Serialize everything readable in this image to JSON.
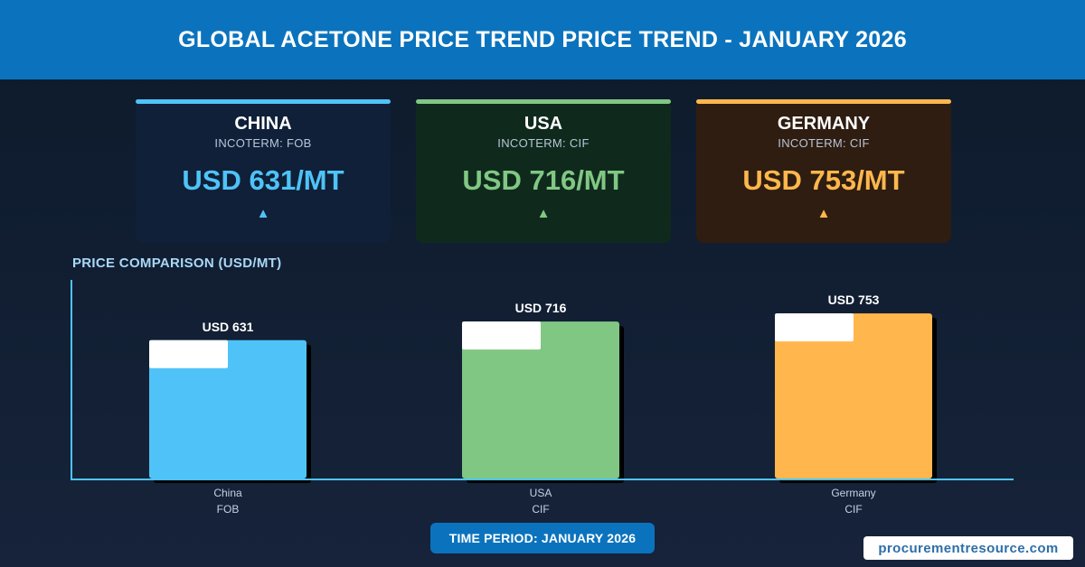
{
  "header": {
    "title": "GLOBAL ACETONE PRICE TREND PRICE TREND - JANUARY 2026"
  },
  "cards": [
    {
      "country": "CHINA",
      "incoterm": "INCOTERM: FOB",
      "price": "USD 631/MT",
      "trend": "▲",
      "color": "#4fc3f7"
    },
    {
      "country": "USA",
      "incoterm": "INCOTERM: CIF",
      "price": "USD 716/MT",
      "trend": "▲",
      "color": "#81c784"
    },
    {
      "country": "GERMANY",
      "incoterm": "INCOTERM: CIF",
      "price": "USD 753/MT",
      "trend": "▲",
      "color": "#ffb74d"
    }
  ],
  "chart_title": "PRICE COMPARISON (USD/MT)",
  "chart_data": {
    "type": "bar",
    "title": "PRICE COMPARISON (USD/MT)",
    "categories": [
      "China",
      "USA",
      "Germany"
    ],
    "sublabels": [
      "FOB",
      "CIF",
      "CIF"
    ],
    "values": [
      631,
      716,
      753
    ],
    "value_labels": [
      "USD 631",
      "USD 716",
      "USD 753"
    ],
    "colors": [
      "#4fc3f7",
      "#81c784",
      "#ffb74d"
    ],
    "xlabel": "",
    "ylabel": "",
    "ylim": [
      0,
      1000
    ],
    "grid": false
  },
  "footer": {
    "period": "TIME PERIOD: JANUARY 2026",
    "brand": "procurementresource.com"
  }
}
